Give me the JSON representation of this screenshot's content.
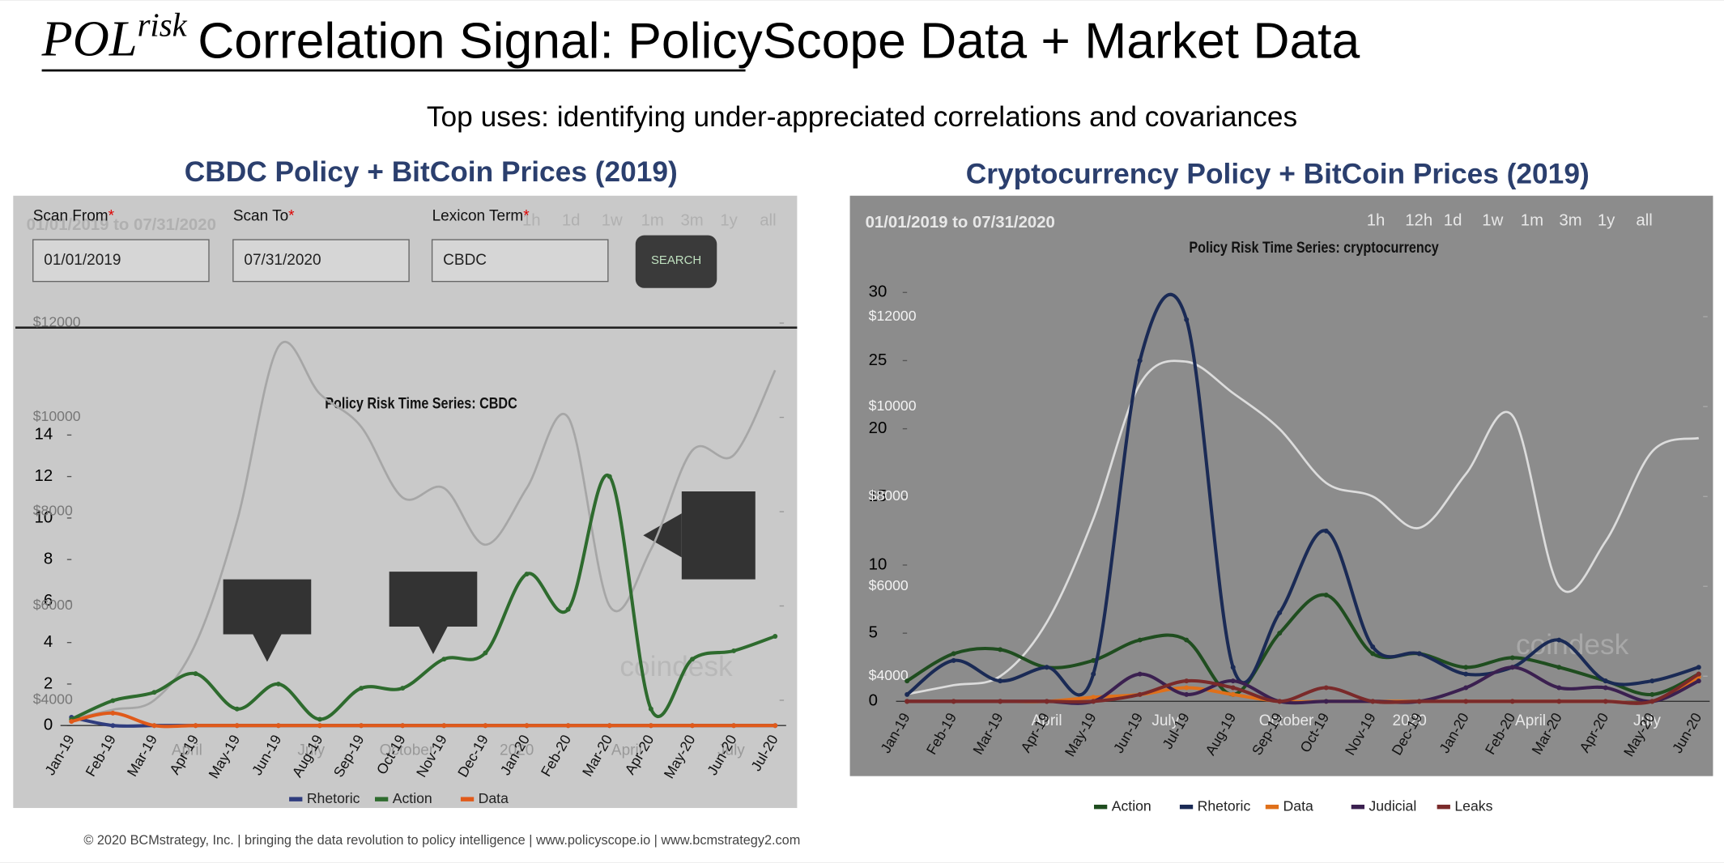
{
  "header": {
    "title_main": "POL",
    "title_sup": "risk",
    "title_underlined": "Correlation Signal",
    "title_rest": ": PolicyScope Data + Market Data",
    "subtitle": "Top uses:  identifying under-appreciated correlations and covariances"
  },
  "footer": "© 2020 BCMstrategy, Inc. | bringing the data revolution to policy intelligence | www.policyscope.io | www.bcmstrategy2.com",
  "chart_data": [
    {
      "type": "line",
      "title": "CBDC Policy + BitCoin Prices (2019)",
      "subtitle": "Policy Risk Time Series: CBDC",
      "form": {
        "labels": [
          "Scan From",
          "Scan To",
          "Lexicon Term"
        ],
        "required_mark": "*",
        "inputs": [
          "01/01/2019",
          "07/31/2020",
          "CBDC"
        ],
        "button": "SEARCH"
      },
      "date_range": "01/01/2019 to 07/31/2020",
      "range_buttons": [
        "1h",
        "1d",
        "1w",
        "1m",
        "3m",
        "1y",
        "all"
      ],
      "overlay_labels": [
        "April",
        "July",
        "October",
        "2020",
        "April",
        "July"
      ],
      "watermark": "coindesk",
      "categories": [
        "Jan-19",
        "Feb-19",
        "Mar-19",
        "Apr-19",
        "May-19",
        "Jun-19",
        "Aug-19",
        "Sep-19",
        "Oct-19",
        "Nov-19",
        "Dec-19",
        "Jan-20",
        "Feb-20",
        "Mar-20",
        "Apr-20",
        "May-20",
        "Jun-20",
        "Jul-20"
      ],
      "series": [
        {
          "name": "Rhetoric",
          "color": "#2f3c7e",
          "values": [
            0.4,
            0,
            0,
            0,
            0,
            0,
            0,
            0,
            0,
            0,
            0,
            0,
            0,
            0,
            0,
            0,
            0,
            0
          ]
        },
        {
          "name": "Action",
          "color": "#2e6b2e",
          "values": [
            0.3,
            1.2,
            1.6,
            2.5,
            0.8,
            2.0,
            0.3,
            1.8,
            1.8,
            3.2,
            3.5,
            7.3,
            5.6,
            12,
            0.8,
            3.2,
            3.6,
            4.3
          ]
        },
        {
          "name": "Data",
          "color": "#e05a1a",
          "values": [
            0.2,
            0.6,
            0,
            0,
            0,
            0,
            0,
            0,
            0,
            0,
            0,
            0,
            0,
            0,
            0,
            0,
            0,
            0
          ]
        },
        {
          "axis": "y2",
          "color": "#a6a6a6",
          "values": [
            3600,
            3800,
            4000,
            5200,
            7800,
            11500,
            10500,
            9800,
            8300,
            8500,
            7300,
            8500,
            10000,
            6000,
            7200,
            9300,
            9200,
            11000
          ]
        }
      ],
      "ylim": [
        0,
        19.6
      ],
      "yticks": [
        0,
        2,
        4,
        6,
        8,
        10,
        12,
        14
      ],
      "y2lim": [
        3464,
        12090
      ],
      "y2ticks": [
        {
          "value": 4000,
          "label": "$4000"
        },
        {
          "value": 6000,
          "label": "$6000"
        },
        {
          "value": 8000,
          "label": "$8000"
        },
        {
          "value": 10000,
          "label": "$10000"
        },
        {
          "value": 12000,
          "label": "$12000"
        }
      ]
    },
    {
      "type": "line",
      "title": "Cryptocurrency Policy + BitCoin Prices (2019)",
      "subtitle": "Policy Risk Time Series: cryptocurrency",
      "date_range": "01/01/2019 to 07/31/2020",
      "range_buttons": [
        "1h",
        "12h",
        "1d",
        "1w",
        "1m",
        "3m",
        "1y",
        "all"
      ],
      "overlay_labels": [
        "April",
        "July",
        "October",
        "2020",
        "April",
        "July"
      ],
      "watermark": "coindesk",
      "categories": [
        "Jan-19",
        "Feb-19",
        "Mar-19",
        "Apr-19",
        "May-19",
        "Jun-19",
        "Jul-19",
        "Aug-19",
        "Sep-19",
        "Oct-19",
        "Nov-19",
        "Dec-19",
        "Jan-20",
        "Feb-20",
        "Mar-20",
        "Apr-20",
        "May-20",
        "Jun-20"
      ],
      "series": [
        {
          "name": "Action",
          "color": "#1f4d1f",
          "values": [
            1.5,
            3.5,
            3.8,
            2.5,
            3,
            4.5,
            4.5,
            0.5,
            5,
            7.8,
            3.5,
            3.5,
            2.5,
            3.2,
            2.5,
            1.5,
            0.5,
            2
          ]
        },
        {
          "name": "Rhetoric",
          "color": "#1a2a55",
          "values": [
            0.5,
            3,
            1.5,
            2.5,
            2,
            25,
            28,
            2.5,
            6.5,
            12.5,
            4,
            3.5,
            2,
            2.5,
            4.5,
            1.5,
            1.5,
            2.5
          ]
        },
        {
          "name": "Data",
          "color": "#e0701a",
          "values": [
            0,
            0,
            0,
            0,
            0.3,
            0.5,
            1,
            0.5,
            0,
            0,
            0,
            0,
            0,
            0,
            0,
            0,
            0,
            1.8
          ]
        },
        {
          "name": "Judicial",
          "color": "#3b2050",
          "values": [
            0,
            0,
            0,
            0,
            0,
            2,
            0.5,
            1.5,
            0,
            0,
            0,
            0,
            1,
            2.5,
            1,
            1,
            0,
            1.5
          ]
        },
        {
          "name": "Leaks",
          "color": "#7a2a2a",
          "values": [
            0,
            0,
            0,
            0,
            0,
            0.5,
            1.5,
            1,
            0,
            1,
            0,
            0,
            0,
            0,
            0,
            0,
            0,
            2
          ]
        },
        {
          "axis": "y2",
          "color": "#dcdcdc",
          "values": [
            3600,
            3800,
            4000,
            5200,
            7500,
            10500,
            11000,
            10300,
            9500,
            8300,
            8000,
            7300,
            8500,
            9800,
            6000,
            7000,
            9000,
            9300
          ]
        }
      ],
      "ylim": [
        0,
        30
      ],
      "yticks": [
        0,
        5,
        10,
        15,
        20,
        25,
        30
      ],
      "y2lim": [
        3440,
        12540
      ],
      "y2ticks": [
        {
          "value": 4000,
          "label": "$4000"
        },
        {
          "value": 6000,
          "label": "$6000"
        },
        {
          "value": 8000,
          "label": "$8000"
        },
        {
          "value": 10000,
          "label": "$10000"
        },
        {
          "value": 12000,
          "label": "$12000"
        }
      ]
    }
  ]
}
